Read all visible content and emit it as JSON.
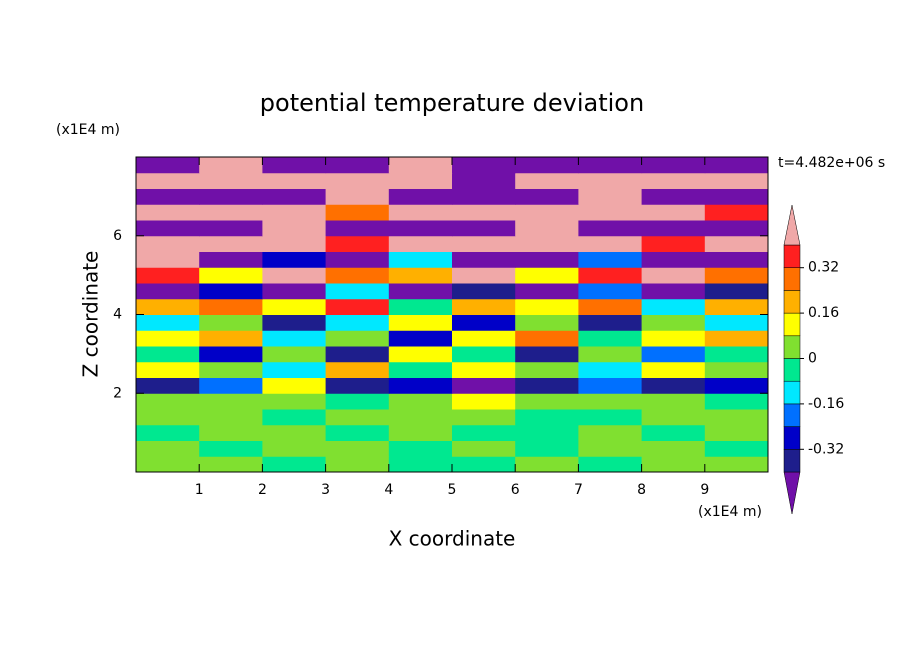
{
  "chart_data": {
    "type": "contourf",
    "title": "potential temperature deviation",
    "xlabel": "X coordinate",
    "ylabel": "Z coordinate",
    "x_unit": "(x1E4 m)",
    "y_unit": "(x1E4 m)",
    "time_label": "t=4.482e+06 s",
    "xlim": [
      0,
      10
    ],
    "ylim": [
      0,
      8
    ],
    "xticks": [
      1,
      2,
      3,
      4,
      5,
      6,
      7,
      8,
      9
    ],
    "yticks": [
      2,
      4,
      6
    ],
    "x": [
      0.5,
      1.5,
      2.5,
      3.5,
      4.5,
      5.5,
      6.5,
      7.5,
      8.5,
      9.5
    ],
    "y": [
      0.2,
      0.6,
      1.0,
      1.4,
      1.8,
      2.2,
      2.6,
      3.0,
      3.4,
      3.8,
      4.2,
      4.6,
      5.0,
      5.4,
      5.8,
      6.2,
      6.6,
      7.0,
      7.4,
      7.8
    ],
    "z": [
      [
        0.04,
        0.04,
        -0.04,
        0.04,
        -0.04,
        -0.04,
        0.04,
        -0.04,
        0.04,
        0.04
      ],
      [
        0.04,
        -0.04,
        0.04,
        0.04,
        -0.04,
        0.04,
        -0.04,
        0.04,
        0.04,
        -0.04
      ],
      [
        -0.04,
        0.04,
        0.04,
        -0.04,
        0.04,
        -0.04,
        -0.04,
        0.04,
        -0.04,
        0.04
      ],
      [
        0.04,
        0.04,
        -0.04,
        0.04,
        0.04,
        0.04,
        -0.04,
        -0.04,
        0.04,
        0.04
      ],
      [
        0.04,
        0.04,
        0.04,
        -0.04,
        0.04,
        0.12,
        0.04,
        0.04,
        0.04,
        -0.04
      ],
      [
        -0.36,
        -0.2,
        0.12,
        -0.36,
        -0.28,
        -0.44,
        -0.36,
        -0.2,
        -0.36,
        -0.28
      ],
      [
        0.12,
        0.04,
        -0.12,
        0.2,
        -0.04,
        0.12,
        0.04,
        -0.12,
        0.12,
        0.04
      ],
      [
        -0.04,
        -0.28,
        0.04,
        -0.36,
        0.12,
        -0.04,
        -0.36,
        0.04,
        -0.2,
        -0.04
      ],
      [
        0.12,
        0.2,
        -0.12,
        0.04,
        -0.28,
        0.12,
        0.28,
        -0.04,
        0.12,
        0.2
      ],
      [
        -0.12,
        0.04,
        -0.36,
        -0.12,
        0.12,
        -0.28,
        0.04,
        -0.36,
        0.04,
        -0.12
      ],
      [
        0.2,
        0.28,
        0.12,
        0.36,
        -0.04,
        0.2,
        0.12,
        0.28,
        -0.12,
        0.2
      ],
      [
        -0.44,
        -0.28,
        -0.44,
        -0.12,
        -0.44,
        -0.36,
        -0.44,
        -0.2,
        -0.44,
        -0.36
      ],
      [
        0.36,
        0.12,
        0.44,
        0.28,
        0.2,
        0.44,
        0.12,
        0.36,
        0.44,
        0.28
      ],
      [
        0.44,
        -0.44,
        -0.28,
        -0.44,
        -0.12,
        -0.44,
        -0.44,
        -0.2,
        -0.44,
        -0.44
      ],
      [
        0.44,
        0.44,
        0.44,
        0.36,
        0.44,
        0.44,
        0.44,
        0.44,
        0.36,
        0.44
      ],
      [
        -0.44,
        -0.44,
        0.44,
        -0.44,
        -0.44,
        -0.44,
        0.44,
        -0.44,
        -0.44,
        -0.44
      ],
      [
        0.44,
        0.44,
        0.44,
        0.28,
        0.44,
        0.44,
        0.44,
        0.44,
        0.44,
        0.36
      ],
      [
        -0.44,
        -0.44,
        -0.44,
        0.44,
        -0.44,
        -0.44,
        -0.44,
        0.44,
        -0.44,
        -0.44
      ],
      [
        0.44,
        0.44,
        0.44,
        0.44,
        0.44,
        -0.44,
        0.44,
        0.44,
        0.44,
        0.44
      ],
      [
        -0.44,
        0.44,
        -0.44,
        -0.44,
        0.44,
        -0.44,
        -0.44,
        -0.44,
        -0.44,
        -0.44
      ]
    ],
    "levels": [
      -0.4,
      -0.32,
      -0.24,
      -0.16,
      -0.08,
      0,
      0.08,
      0.16,
      0.24,
      0.32,
      0.4
    ],
    "colors": [
      "#7010a8",
      "#1e1e8c",
      "#0000c8",
      "#0070ff",
      "#00e8ff",
      "#00e890",
      "#80e030",
      "#ffff00",
      "#ffb000",
      "#ff7000",
      "#ff2020",
      "#f0a8a8"
    ],
    "colorbar_ticks": [
      0.32,
      0.16,
      0,
      -0.16,
      -0.32
    ]
  }
}
